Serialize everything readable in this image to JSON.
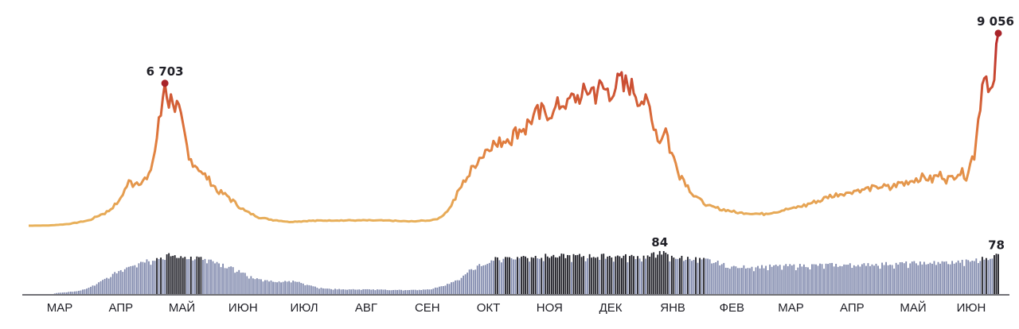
{
  "chart_data": [
    {
      "type": "line",
      "title": "",
      "xlabel": "",
      "ylabel": "",
      "ylim": [
        0,
        9500
      ],
      "grid": false,
      "legend": "none",
      "gradient_colors": [
        "#e8b25c",
        "#e07a3c",
        "#b8262a"
      ],
      "marker_color": "#a8242a",
      "annotations": [
        {
          "label": "6 703",
          "index": 68,
          "value": 6703
        },
        {
          "label": "9 056",
          "index": 484,
          "value": 9056
        }
      ],
      "anchors": [
        [
          0,
          0
        ],
        [
          10,
          10
        ],
        [
          20,
          80
        ],
        [
          30,
          250
        ],
        [
          40,
          700
        ],
        [
          45,
          1150
        ],
        [
          50,
          2050
        ],
        [
          55,
          2050
        ],
        [
          60,
          2300
        ],
        [
          63,
          3500
        ],
        [
          66,
          5500
        ],
        [
          68,
          6703
        ],
        [
          70,
          5800
        ],
        [
          72,
          6100
        ],
        [
          75,
          5400
        ],
        [
          80,
          3200
        ],
        [
          85,
          2700
        ],
        [
          90,
          2150
        ],
        [
          95,
          1600
        ],
        [
          100,
          1350
        ],
        [
          105,
          900
        ],
        [
          110,
          600
        ],
        [
          115,
          400
        ],
        [
          120,
          300
        ],
        [
          130,
          180
        ],
        [
          140,
          230
        ],
        [
          150,
          250
        ],
        [
          160,
          250
        ],
        [
          170,
          250
        ],
        [
          180,
          240
        ],
        [
          190,
          200
        ],
        [
          200,
          250
        ],
        [
          205,
          350
        ],
        [
          210,
          800
        ],
        [
          215,
          1700
        ],
        [
          220,
          2500
        ],
        [
          225,
          3200
        ],
        [
          230,
          3800
        ],
        [
          235,
          3900
        ],
        [
          240,
          4200
        ],
        [
          245,
          4500
        ],
        [
          250,
          4900
        ],
        [
          255,
          5400
        ],
        [
          260,
          5300
        ],
        [
          265,
          5700
        ],
        [
          270,
          5900
        ],
        [
          275,
          6100
        ],
        [
          280,
          6400
        ],
        [
          285,
          6500
        ],
        [
          290,
          6300
        ],
        [
          295,
          6800
        ],
        [
          300,
          6600
        ],
        [
          305,
          6100
        ],
        [
          310,
          5500
        ],
        [
          315,
          3900
        ],
        [
          318,
          4800
        ],
        [
          320,
          3600
        ],
        [
          325,
          2500
        ],
        [
          330,
          1700
        ],
        [
          335,
          1200
        ],
        [
          340,
          900
        ],
        [
          345,
          800
        ],
        [
          350,
          700
        ],
        [
          355,
          600
        ],
        [
          360,
          600
        ],
        [
          365,
          550
        ],
        [
          370,
          600
        ],
        [
          375,
          700
        ],
        [
          380,
          800
        ],
        [
          385,
          900
        ],
        [
          390,
          1050
        ],
        [
          395,
          1200
        ],
        [
          400,
          1400
        ],
        [
          405,
          1500
        ],
        [
          410,
          1600
        ],
        [
          415,
          1700
        ],
        [
          420,
          1750
        ],
        [
          425,
          1850
        ],
        [
          430,
          1800
        ],
        [
          435,
          2000
        ],
        [
          440,
          2100
        ],
        [
          445,
          2300
        ],
        [
          450,
          2200
        ],
        [
          455,
          2400
        ],
        [
          460,
          2200
        ],
        [
          465,
          2600
        ],
        [
          468,
          2300
        ],
        [
          472,
          3500
        ],
        [
          475,
          5800
        ],
        [
          477,
          7500
        ],
        [
          479,
          6400
        ],
        [
          481,
          6100
        ],
        [
          484,
          9056
        ]
      ]
    },
    {
      "type": "bar",
      "title": "",
      "ylim": [
        0,
        90
      ],
      "bar_colors": [
        "#8089ad",
        "#1c1c24"
      ],
      "dark_threshold": 70,
      "annotations": [
        {
          "label": "84",
          "index": 315,
          "value": 84
        },
        {
          "label": "78",
          "index": 484,
          "value": 78
        }
      ],
      "anchors": [
        [
          0,
          0
        ],
        [
          12,
          0
        ],
        [
          14,
          2
        ],
        [
          20,
          4
        ],
        [
          25,
          6
        ],
        [
          30,
          12
        ],
        [
          35,
          22
        ],
        [
          40,
          33
        ],
        [
          45,
          45
        ],
        [
          50,
          55
        ],
        [
          55,
          62
        ],
        [
          60,
          67
        ],
        [
          65,
          70
        ],
        [
          70,
          75
        ],
        [
          75,
          74
        ],
        [
          80,
          72
        ],
        [
          85,
          70
        ],
        [
          90,
          65
        ],
        [
          95,
          58
        ],
        [
          100,
          52
        ],
        [
          105,
          45
        ],
        [
          110,
          35
        ],
        [
          115,
          28
        ],
        [
          118,
          27
        ],
        [
          120,
          26
        ],
        [
          125,
          24
        ],
        [
          130,
          26
        ],
        [
          135,
          23
        ],
        [
          140,
          18
        ],
        [
          145,
          12
        ],
        [
          150,
          10
        ],
        [
          160,
          9
        ],
        [
          170,
          9
        ],
        [
          180,
          8
        ],
        [
          190,
          8
        ],
        [
          195,
          8
        ],
        [
          200,
          9
        ],
        [
          205,
          14
        ],
        [
          210,
          20
        ],
        [
          215,
          30
        ],
        [
          220,
          45
        ],
        [
          225,
          55
        ],
        [
          230,
          65
        ],
        [
          235,
          70
        ],
        [
          240,
          72
        ],
        [
          250,
          73
        ],
        [
          260,
          74
        ],
        [
          270,
          74
        ],
        [
          280,
          74
        ],
        [
          290,
          74
        ],
        [
          300,
          73
        ],
        [
          305,
          73
        ],
        [
          310,
          73
        ],
        [
          315,
          84
        ],
        [
          320,
          72
        ],
        [
          330,
          70
        ],
        [
          340,
          65
        ],
        [
          345,
          60
        ],
        [
          350,
          53
        ],
        [
          360,
          53
        ],
        [
          370,
          54
        ],
        [
          380,
          55
        ],
        [
          390,
          56
        ],
        [
          400,
          57
        ],
        [
          410,
          57
        ],
        [
          420,
          58
        ],
        [
          430,
          59
        ],
        [
          440,
          60
        ],
        [
          450,
          61
        ],
        [
          460,
          62
        ],
        [
          470,
          64
        ],
        [
          475,
          68
        ],
        [
          480,
          72
        ],
        [
          484,
          78
        ]
      ]
    }
  ],
  "x_axis": {
    "type": "date",
    "start": "2020-03-01",
    "points": 485,
    "months": [
      "МАР",
      "АПР",
      "МАЙ",
      "ИЮН",
      "ИЮЛ",
      "АВГ",
      "СЕН",
      "ОКТ",
      "НОЯ",
      "ДЕК",
      "ЯНВ",
      "ФЕВ",
      "МАР",
      "АПР",
      "МАЙ",
      "ИЮН"
    ]
  }
}
